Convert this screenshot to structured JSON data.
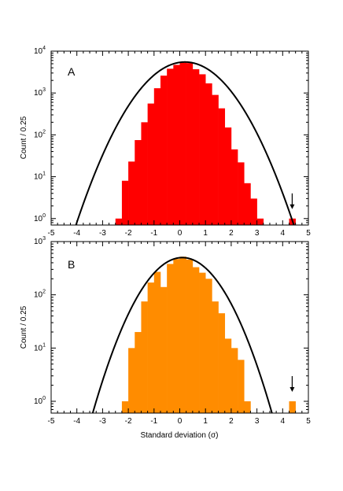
{
  "chart_data": [
    {
      "panel": "A",
      "type": "bar",
      "bar_color": "#ff0000",
      "curve_color": "#000000",
      "ylabel": "Count / 0.25",
      "xlabel": "",
      "xlim": [
        -5,
        5
      ],
      "ylim": [
        0.7,
        10000
      ],
      "yscale": "log",
      "x_ticks": [
        "-5",
        "-4",
        "-3",
        "-2",
        "-1",
        "0",
        "1",
        "2",
        "3",
        "4",
        "5"
      ],
      "y_ticks": [
        {
          "base": "10",
          "exp": "0"
        },
        {
          "base": "10",
          "exp": "1"
        },
        {
          "base": "10",
          "exp": "2"
        },
        {
          "base": "10",
          "exp": "3"
        },
        {
          "base": "10",
          "exp": "4"
        }
      ],
      "bin_width": 0.25,
      "bins": [
        {
          "x": -2.5,
          "count": 1
        },
        {
          "x": -2.25,
          "count": 8
        },
        {
          "x": -2.0,
          "count": 23
        },
        {
          "x": -1.75,
          "count": 75
        },
        {
          "x": -1.5,
          "count": 200
        },
        {
          "x": -1.25,
          "count": 560
        },
        {
          "x": -1.0,
          "count": 1300
        },
        {
          "x": -0.75,
          "count": 2600
        },
        {
          "x": -0.5,
          "count": 3800
        },
        {
          "x": -0.25,
          "count": 4700
        },
        {
          "x": 0.0,
          "count": 5300
        },
        {
          "x": 0.25,
          "count": 5200
        },
        {
          "x": 0.5,
          "count": 3700
        },
        {
          "x": 0.75,
          "count": 2800
        },
        {
          "x": 1.0,
          "count": 1700
        },
        {
          "x": 1.25,
          "count": 900
        },
        {
          "x": 1.5,
          "count": 430
        },
        {
          "x": 1.75,
          "count": 150
        },
        {
          "x": 2.0,
          "count": 45
        },
        {
          "x": 2.25,
          "count": 22
        },
        {
          "x": 2.5,
          "count": 7
        },
        {
          "x": 2.75,
          "count": 3
        },
        {
          "x": 3.0,
          "count": 1
        },
        {
          "x": 4.25,
          "count": 1
        }
      ],
      "fit_curve": {
        "type": "gaussian",
        "peak": 5500,
        "mean": 0.2,
        "sigma": 1.0
      },
      "arrow_x": 4.37
    },
    {
      "panel": "B",
      "type": "bar",
      "bar_color": "#ff8c00",
      "curve_color": "#000000",
      "ylabel": "Count / 0.25",
      "xlabel": "Standard deviation (σ)",
      "xlim": [
        -5,
        5
      ],
      "ylim": [
        0.6,
        1000
      ],
      "yscale": "log",
      "x_ticks": [
        "-5",
        "-4",
        "-3",
        "-2",
        "-1",
        "0",
        "1",
        "2",
        "3",
        "4",
        "5"
      ],
      "y_ticks": [
        {
          "base": "10",
          "exp": "0"
        },
        {
          "base": "10",
          "exp": "1"
        },
        {
          "base": "10",
          "exp": "2"
        },
        {
          "base": "10",
          "exp": "3"
        }
      ],
      "bin_width": 0.25,
      "bins": [
        {
          "x": -2.25,
          "count": 1
        },
        {
          "x": -2.0,
          "count": 10
        },
        {
          "x": -1.75,
          "count": 20
        },
        {
          "x": -1.5,
          "count": 75
        },
        {
          "x": -1.25,
          "count": 170
        },
        {
          "x": -1.0,
          "count": 270
        },
        {
          "x": -0.75,
          "count": 140
        },
        {
          "x": -0.5,
          "count": 380
        },
        {
          "x": -0.25,
          "count": 470
        },
        {
          "x": 0.0,
          "count": 520
        },
        {
          "x": 0.25,
          "count": 460
        },
        {
          "x": 0.5,
          "count": 330
        },
        {
          "x": 0.75,
          "count": 260
        },
        {
          "x": 1.0,
          "count": 200
        },
        {
          "x": 1.25,
          "count": 75
        },
        {
          "x": 1.5,
          "count": 45
        },
        {
          "x": 1.75,
          "count": 15
        },
        {
          "x": 2.0,
          "count": 10
        },
        {
          "x": 2.25,
          "count": 6
        },
        {
          "x": 2.5,
          "count": 1
        },
        {
          "x": 4.25,
          "count": 1
        }
      ],
      "fit_curve": {
        "type": "gaussian",
        "peak": 500,
        "mean": 0.1,
        "sigma": 0.95
      },
      "arrow_x": 4.37
    }
  ]
}
